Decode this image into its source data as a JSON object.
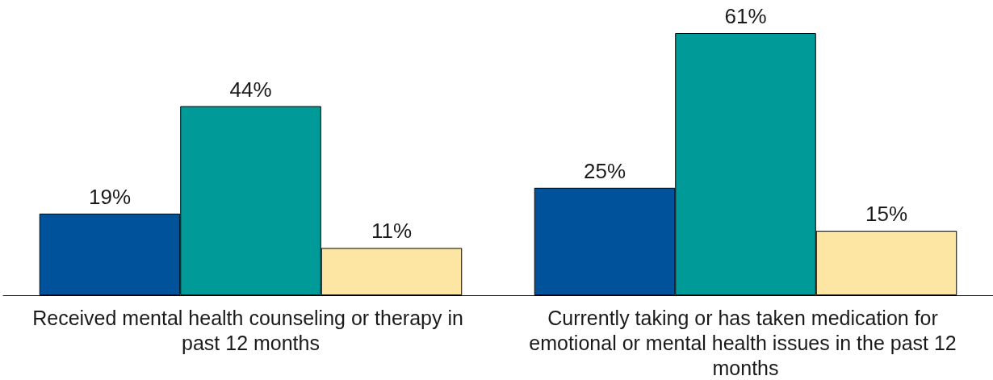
{
  "chart_data": {
    "type": "bar",
    "categories": [
      "Received mental health counseling or therapy in past 12 months",
      "Currently taking or has taken medication for emotional or mental health issues in the past 12 months"
    ],
    "series": [
      {
        "color": "#00539b",
        "values": [
          19,
          25
        ],
        "value_labels": [
          "19%",
          "25%"
        ]
      },
      {
        "color": "#009a99",
        "values": [
          44,
          61
        ],
        "value_labels": [
          "44%",
          "61%"
        ]
      },
      {
        "color": "#fde6a4",
        "values": [
          11,
          15
        ],
        "value_labels": [
          "11%",
          "15%"
        ]
      }
    ],
    "tick_labels": "x"
  }
}
